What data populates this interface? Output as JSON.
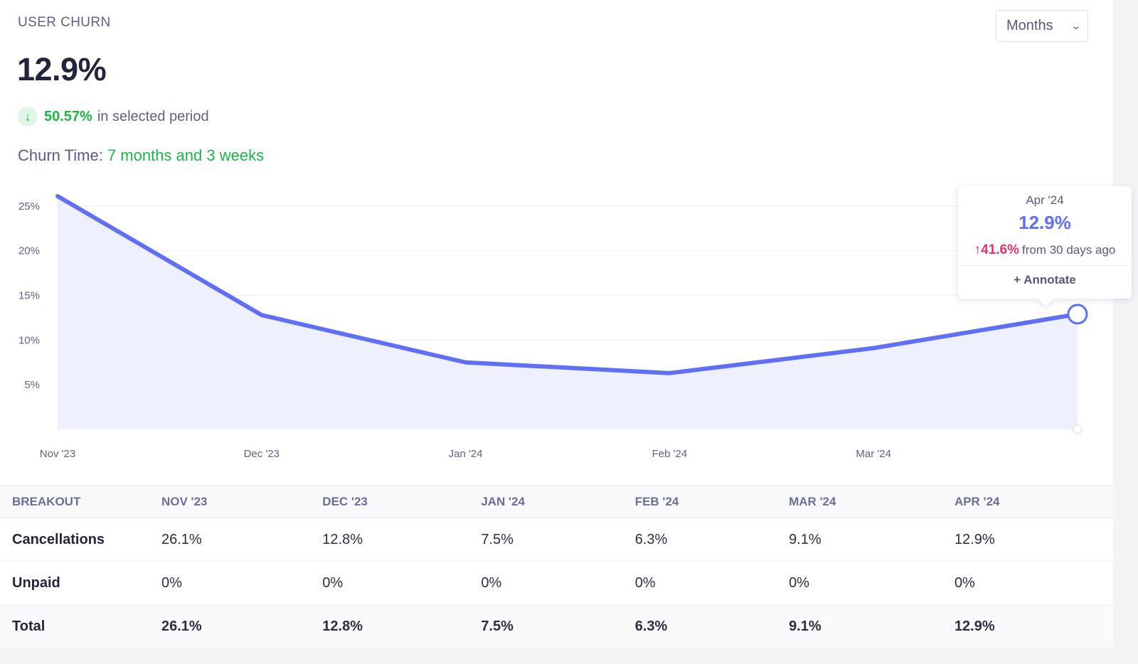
{
  "header": {
    "title": "USER CHURN",
    "value": "12.9%",
    "change_value": "50.57%",
    "change_text": "in selected period",
    "churn_time_label": "Churn Time:",
    "churn_time_value": "7 months and 3 weeks"
  },
  "period_select": {
    "selected": "Months"
  },
  "chart_data": {
    "type": "area",
    "categories": [
      "Nov '23",
      "Dec '23",
      "Jan '24",
      "Feb '24",
      "Mar '24",
      "Apr '24"
    ],
    "series": [
      {
        "values": [
          26.1,
          12.8,
          7.5,
          6.3,
          9.1,
          12.9
        ]
      }
    ],
    "x_tick_labels": [
      "Nov '23",
      "Dec '23",
      "Jan '24",
      "Feb '24",
      "Mar '24"
    ],
    "y_ticks": [
      "5%",
      "10%",
      "15%",
      "20%",
      "25%"
    ],
    "ylim": [
      0,
      26.1
    ],
    "grid": true,
    "colors": {
      "line": "#5f70f7",
      "fill": "#eef0fd",
      "grid": "#ececf2"
    }
  },
  "tooltip": {
    "date": "Apr '24",
    "value": "12.9%",
    "change_value": "41.6%",
    "change_text": "from 30 days ago",
    "annotate_label": "+ Annotate"
  },
  "table": {
    "headers": [
      "BREAKOUT",
      "NOV '23",
      "DEC '23",
      "JAN '24",
      "FEB '24",
      "MAR '24",
      "APR '24"
    ],
    "rows": [
      {
        "label": "Cancellations",
        "cells": [
          "26.1%",
          "12.8%",
          "7.5%",
          "6.3%",
          "9.1%",
          "12.9%"
        ]
      },
      {
        "label": "Unpaid",
        "cells": [
          "0%",
          "0%",
          "0%",
          "0%",
          "0%",
          "0%"
        ]
      },
      {
        "label": "Total",
        "cells": [
          "26.1%",
          "12.8%",
          "7.5%",
          "6.3%",
          "9.1%",
          "12.9%"
        ]
      }
    ]
  }
}
